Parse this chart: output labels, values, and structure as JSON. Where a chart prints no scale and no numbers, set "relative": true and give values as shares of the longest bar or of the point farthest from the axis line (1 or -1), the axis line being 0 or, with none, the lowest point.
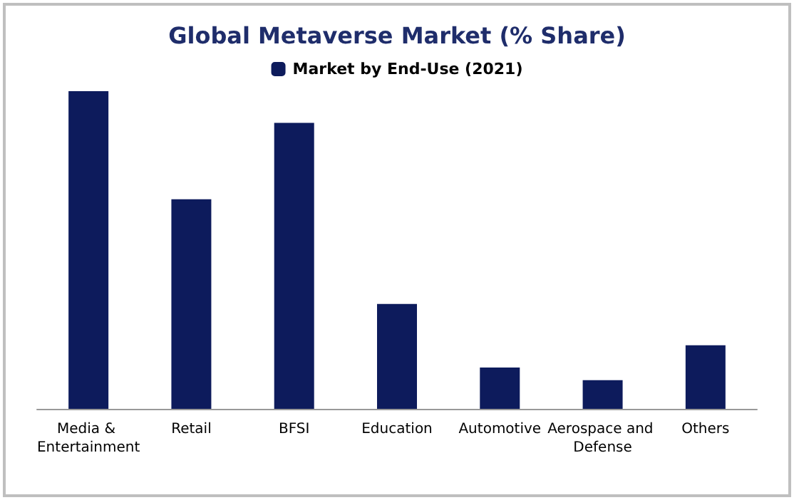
{
  "chart_data": {
    "type": "bar",
    "title": "Global Metaverse Market (% Share)",
    "relative": true,
    "categories": [
      "Media & Entertainment",
      "Retail",
      "BFSI",
      "Education",
      "Automotive",
      "Aerospace and Defense",
      "Others"
    ],
    "series": [
      {
        "name": "Market by End-Use (2021)",
        "color": "#0d1b5c",
        "values": [
          1,
          0.66,
          0.9,
          0.33,
          0.13,
          0.09,
          0.2
        ]
      }
    ],
    "legend": "top"
  }
}
